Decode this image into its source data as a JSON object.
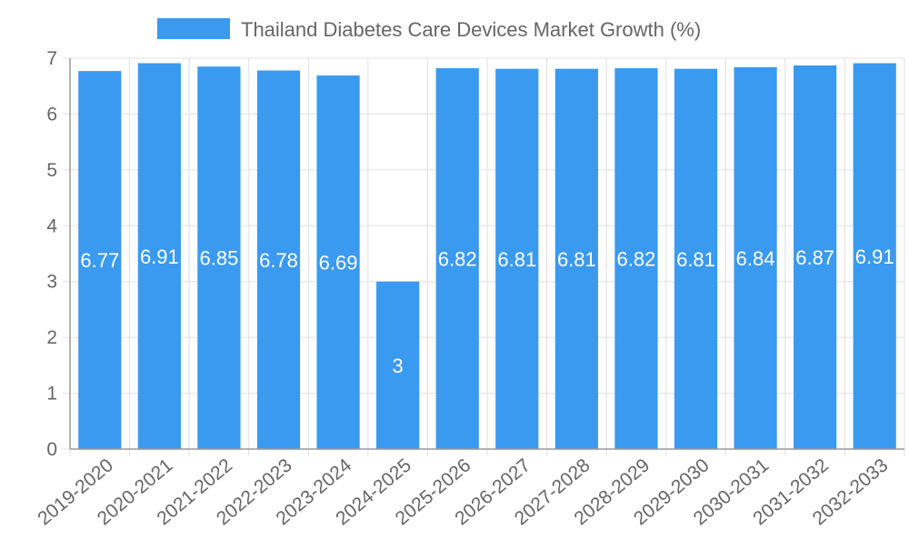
{
  "chart_data": {
    "type": "bar",
    "title": "",
    "xlabel": "",
    "ylabel": "",
    "ylim": [
      0,
      7
    ],
    "yticks": [
      0,
      1,
      2,
      3,
      4,
      5,
      6,
      7
    ],
    "grid": true,
    "legend_position": "top",
    "categories": [
      "2019-2020",
      "2020-2021",
      "2021-2022",
      "2022-2023",
      "2023-2024",
      "2024-2025",
      "2025-2026",
      "2026-2027",
      "2027-2028",
      "2028-2029",
      "2029-2030",
      "2030-2031",
      "2031-2032",
      "2032-2033"
    ],
    "series": [
      {
        "name": "Thailand Diabetes Care Devices Market Growth (%)",
        "color": "#3a9af0",
        "values": [
          6.77,
          6.91,
          6.85,
          6.78,
          6.69,
          3,
          6.82,
          6.81,
          6.81,
          6.82,
          6.81,
          6.84,
          6.87,
          6.91
        ],
        "labels": [
          "6.77",
          "6.91",
          "6.85",
          "6.78",
          "6.69",
          "3",
          "6.82",
          "6.81",
          "6.81",
          "6.82",
          "6.81",
          "6.84",
          "6.87",
          "6.91"
        ]
      }
    ]
  }
}
